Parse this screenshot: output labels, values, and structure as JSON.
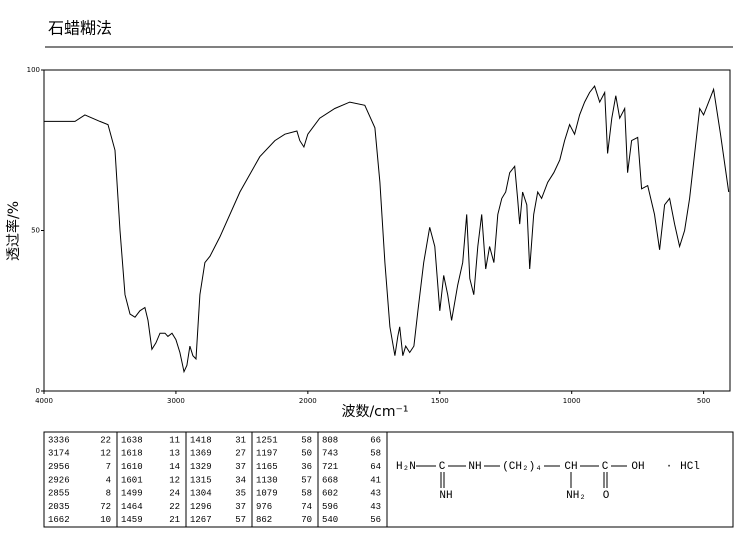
{
  "header": {
    "title": "石蜡糊法"
  },
  "chart_data": {
    "type": "line",
    "xlabel": "波数/cm⁻¹",
    "ylabel": "透过率/%",
    "xlim": [
      4000,
      400
    ],
    "xticks": [
      4000,
      3000,
      2000,
      1500,
      1000,
      500
    ],
    "x_break": 2000,
    "x_zoom_after_break": 2,
    "ylim": [
      0,
      100
    ],
    "yticks": [
      0,
      50,
      100
    ],
    "color": "#000000",
    "x": [
      4000,
      3765,
      3690,
      3576,
      3515,
      3462,
      3424,
      3386,
      3348,
      3310,
      3273,
      3235,
      3212,
      3182,
      3152,
      3121,
      3083,
      3061,
      3030,
      3000,
      2970,
      2939,
      2917,
      2894,
      2871,
      2848,
      2818,
      2780,
      2742,
      2667,
      2515,
      2364,
      2250,
      2174,
      2083,
      2061,
      2030,
      2000,
      1955,
      1898,
      1841,
      1784,
      1746,
      1727,
      1708,
      1689,
      1670,
      1659,
      1652,
      1640,
      1629,
      1614,
      1598,
      1583,
      1561,
      1538,
      1519,
      1500,
      1485,
      1470,
      1455,
      1432,
      1413,
      1398,
      1386,
      1371,
      1356,
      1341,
      1326,
      1311,
      1295,
      1280,
      1265,
      1250,
      1235,
      1216,
      1205,
      1197,
      1186,
      1170,
      1159,
      1144,
      1129,
      1114,
      1091,
      1068,
      1045,
      1027,
      1008,
      989,
      970,
      951,
      932,
      913,
      894,
      875,
      864,
      848,
      833,
      818,
      799,
      788,
      773,
      750,
      735,
      712,
      686,
      667,
      648,
      629,
      610,
      591,
      572,
      553,
      515,
      500,
      462,
      436,
      405
    ],
    "values": [
      84,
      84,
      86,
      84,
      83,
      75,
      50,
      30,
      24,
      23,
      25,
      26,
      22,
      13,
      15,
      18,
      18,
      17,
      18,
      16,
      12,
      6,
      8,
      14,
      11,
      10,
      30,
      40,
      42,
      48,
      62,
      73,
      78,
      80,
      81,
      78,
      76,
      80,
      85,
      88,
      90,
      89,
      82,
      65,
      40,
      20,
      11,
      17,
      20,
      11,
      14,
      12,
      14,
      25,
      40,
      51,
      45,
      25,
      36,
      30,
      22,
      33,
      40,
      55,
      35,
      30,
      45,
      55,
      38,
      45,
      40,
      55,
      60,
      62,
      68,
      70,
      60,
      52,
      62,
      58,
      38,
      55,
      62,
      60,
      65,
      68,
      72,
      78,
      83,
      80,
      86,
      90,
      93,
      95,
      90,
      93,
      74,
      85,
      92,
      85,
      88,
      68,
      78,
      79,
      63,
      64,
      55,
      44,
      58,
      60,
      52,
      45,
      50,
      60,
      88,
      86,
      94,
      80,
      62
    ]
  },
  "peak_table": [
    [
      [
        3336,
        22
      ],
      [
        3174,
        12
      ],
      [
        2956,
        7
      ],
      [
        2926,
        4
      ],
      [
        2855,
        8
      ],
      [
        2035,
        72
      ],
      [
        1662,
        10
      ]
    ],
    [
      [
        1638,
        11
      ],
      [
        1618,
        13
      ],
      [
        1610,
        14
      ],
      [
        1601,
        12
      ],
      [
        1499,
        24
      ],
      [
        1464,
        22
      ],
      [
        1459,
        21
      ]
    ],
    [
      [
        1418,
        31
      ],
      [
        1369,
        27
      ],
      [
        1329,
        37
      ],
      [
        1315,
        34
      ],
      [
        1304,
        35
      ],
      [
        1296,
        37
      ],
      [
        1267,
        57
      ]
    ],
    [
      [
        1251,
        58
      ],
      [
        1197,
        50
      ],
      [
        1165,
        36
      ],
      [
        1130,
        57
      ],
      [
        1079,
        58
      ],
      [
        976,
        74
      ],
      [
        862,
        70
      ]
    ],
    [
      [
        808,
        66
      ],
      [
        743,
        58
      ],
      [
        721,
        64
      ],
      [
        668,
        41
      ],
      [
        602,
        43
      ],
      [
        596,
        43
      ],
      [
        540,
        56
      ]
    ]
  ],
  "structure": {
    "labels": [
      "H₂N",
      "C",
      "NH",
      "(CH₂)₄",
      "CH",
      "C",
      "OH",
      "·",
      "HCl",
      "NH",
      "NH₂",
      "O"
    ]
  }
}
